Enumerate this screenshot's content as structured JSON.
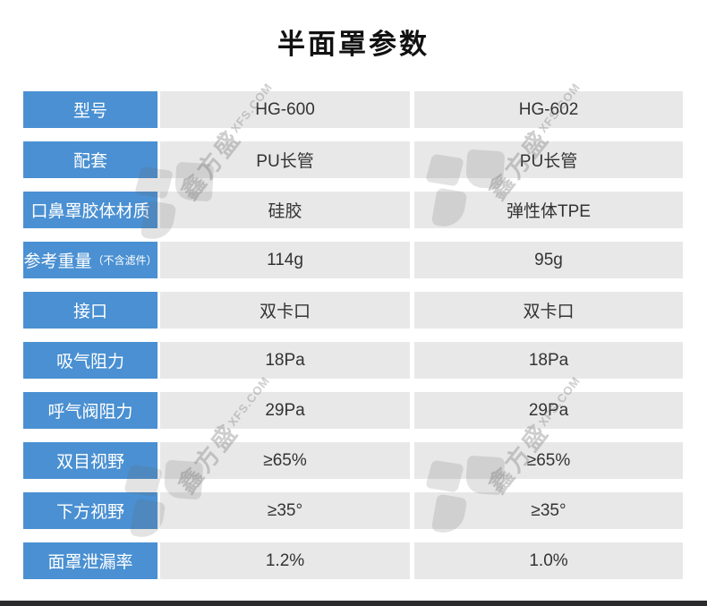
{
  "page": {
    "title": "半面罩参数"
  },
  "watermark": {
    "brand_cn": "鑫方盛",
    "brand_en": "XFS.COM"
  },
  "table": {
    "rows": [
      {
        "label": "型号",
        "label_suffix": "",
        "col1": "HG-600",
        "col2": "HG-602"
      },
      {
        "label": "配套",
        "label_suffix": "",
        "col1": "PU长管",
        "col2": "PU长管"
      },
      {
        "label": "口鼻罩胶体材质",
        "label_suffix": "",
        "col1": "硅胶",
        "col2": "弹性体TPE"
      },
      {
        "label": "参考重量",
        "label_suffix": "（不含滤件）",
        "col1": "114g",
        "col2": "95g"
      },
      {
        "label": "接口",
        "label_suffix": "",
        "col1": "双卡口",
        "col2": "双卡口"
      },
      {
        "label": "吸气阻力",
        "label_suffix": "",
        "col1": "18Pa",
        "col2": "18Pa"
      },
      {
        "label": "呼气阀阻力",
        "label_suffix": "",
        "col1": "29Pa",
        "col2": "29Pa"
      },
      {
        "label": "双目视野",
        "label_suffix": "",
        "col1": "≥65%",
        "col2": "≥65%"
      },
      {
        "label": "下方视野",
        "label_suffix": "",
        "col1": "≥35°",
        "col2": "≥35°"
      },
      {
        "label": "面罩泄漏率",
        "label_suffix": "",
        "col1": "1.2%",
        "col2": "1.0%"
      }
    ]
  },
  "colors": {
    "header_blue": "#4a90d2",
    "cell_gray": "#e8e8e8",
    "title_text": "#111111",
    "cell_text": "#333333",
    "footer_bar": "#2b2b2d"
  }
}
